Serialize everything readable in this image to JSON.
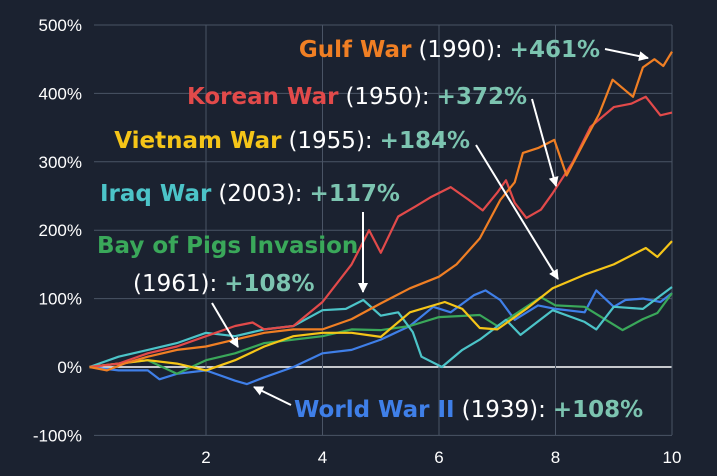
{
  "chart_data": {
    "type": "line",
    "title": "",
    "xlabel": "",
    "ylabel": "",
    "xlim": [
      0,
      10
    ],
    "ylim": [
      -100,
      500
    ],
    "grid": true,
    "x_ticks": [
      "2",
      "4",
      "6",
      "8",
      "10"
    ],
    "y_ticks": [
      "500%",
      "400%",
      "300%",
      "200%",
      "100%",
      "0%",
      "-100%"
    ],
    "value_color": "#7cc4b0",
    "series": [
      {
        "name": "Gulf War",
        "year": "(1990):",
        "result": "+461%",
        "color": "#f07f24",
        "x": [
          0,
          0.3,
          0.6,
          1,
          1.5,
          2,
          2.5,
          3,
          3.5,
          4,
          4.5,
          5,
          5.5,
          6,
          6.3,
          6.7,
          7.05,
          7.3,
          7.44,
          7.7,
          7.98,
          8.19,
          8.5,
          8.75,
          8.98,
          9.33,
          9.5,
          9.7,
          9.85,
          10
        ],
        "y": [
          0,
          -5,
          5,
          15,
          25,
          30,
          40,
          50,
          55,
          55,
          70,
          93,
          115,
          132,
          150,
          188,
          244,
          270,
          313,
          320,
          332,
          280,
          330,
          370,
          420,
          395,
          438,
          450,
          440,
          461
        ]
      },
      {
        "name": "Korean War",
        "year": "(1950):",
        "result": "+372%",
        "color": "#e24a4a",
        "x": [
          0,
          0.5,
          1,
          1.5,
          2,
          2.5,
          2.8,
          3,
          3.5,
          4,
          4.5,
          4.8,
          5,
          5.3,
          5.6,
          5.85,
          6.2,
          6.5,
          6.75,
          7,
          7.15,
          7.3,
          7.5,
          7.75,
          7.95,
          8.3,
          8.6,
          9,
          9.3,
          9.55,
          9.8,
          10
        ],
        "y": [
          0,
          5,
          20,
          30,
          45,
          60,
          65,
          55,
          60,
          95,
          150,
          200,
          167,
          220,
          235,
          248,
          263,
          245,
          229,
          255,
          273,
          240,
          218,
          230,
          254,
          300,
          351,
          380,
          385,
          395,
          368,
          372
        ]
      },
      {
        "name": "Vietnam War",
        "year": "(1955):",
        "result": "+184%",
        "color": "#f5c518",
        "x": [
          0,
          0.5,
          1,
          1.5,
          2,
          2.5,
          3,
          3.5,
          4,
          4.5,
          5,
          5.5,
          6.1,
          6.4,
          6.7,
          7,
          7.5,
          7.95,
          8.5,
          9,
          9.55,
          9.75,
          10
        ],
        "y": [
          0,
          5,
          10,
          5,
          -5,
          10,
          30,
          45,
          50,
          50,
          44,
          80,
          95,
          85,
          57,
          55,
          85,
          115,
          135,
          150,
          174,
          161,
          184
        ]
      },
      {
        "name": "Iraq War",
        "year": "(2003):",
        "result": "+117%",
        "color": "#4cc4c8",
        "x": [
          0,
          0.5,
          1,
          1.5,
          2,
          2.5,
          3,
          3.5,
          4,
          4.4,
          4.7,
          5,
          5.3,
          5.55,
          5.7,
          6.05,
          6.4,
          6.7,
          7.15,
          7.4,
          7.95,
          8.5,
          8.7,
          9,
          9.5,
          10
        ],
        "y": [
          0,
          15,
          25,
          35,
          50,
          45,
          55,
          60,
          83,
          85,
          98,
          75,
          80,
          51,
          15,
          0,
          25,
          40,
          69,
          47,
          83,
          66,
          55,
          88,
          85,
          117
        ]
      },
      {
        "name": "Bay of Pigs Invasion",
        "year": "(1961):",
        "result": "+108%",
        "color": "#3aa85a",
        "x": [
          0,
          0.5,
          1,
          1.5,
          2,
          2.5,
          3,
          3.5,
          4,
          4.5,
          5,
          5.5,
          6,
          6.7,
          7,
          7.75,
          8,
          8.5,
          9.15,
          9.5,
          9.75,
          10
        ],
        "y": [
          0,
          5,
          10,
          -10,
          10,
          20,
          35,
          40,
          45,
          55,
          54,
          60,
          73,
          76,
          60,
          102,
          90,
          88,
          54,
          70,
          79,
          108
        ]
      },
      {
        "name": "World War II",
        "year": "(1939):",
        "result": "+108%",
        "color": "#3f7fe8",
        "x": [
          0,
          0.5,
          1,
          1.2,
          1.5,
          2,
          2.5,
          2.7,
          3,
          3.5,
          4,
          4.5,
          5,
          5.5,
          5.9,
          6.2,
          6.6,
          6.8,
          7.05,
          7.3,
          7.7,
          8,
          8.5,
          8.7,
          9,
          9.2,
          9.5,
          9.8,
          10
        ],
        "y": [
          0,
          -5,
          -5,
          -18,
          -10,
          -5,
          -20,
          -25,
          -15,
          0,
          20,
          25,
          40,
          60,
          88,
          80,
          105,
          112,
          98,
          69,
          90,
          85,
          80,
          112,
          88,
          98,
          100,
          95,
          108
        ]
      }
    ]
  }
}
